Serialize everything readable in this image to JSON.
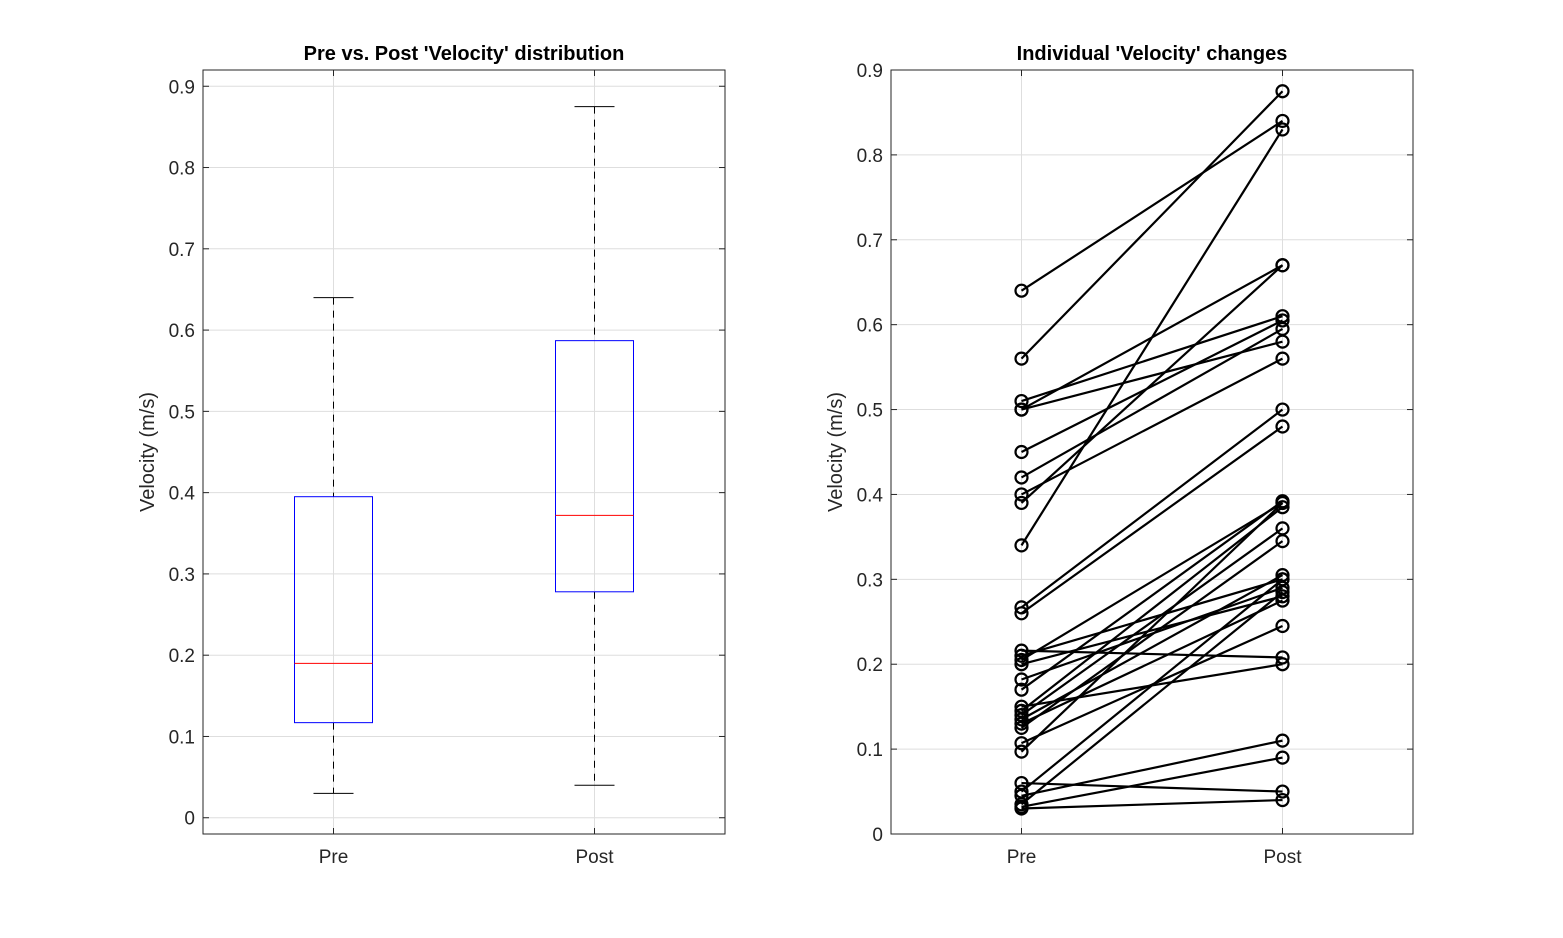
{
  "chart_data": [
    {
      "type": "box",
      "title": "Pre vs. Post 'Velocity' distribution",
      "xlabel": "",
      "ylabel": "Velocity (m/s)",
      "categories": [
        "Pre",
        "Post"
      ],
      "ylim": [
        -0.02,
        0.92
      ],
      "yticks": [
        0,
        0.1,
        0.2,
        0.3,
        0.4,
        0.5,
        0.6,
        0.7,
        0.8,
        0.9
      ],
      "ytick_labels": [
        "0",
        "0.1",
        "0.2",
        "0.3",
        "0.4",
        "0.5",
        "0.6",
        "0.7",
        "0.8",
        "0.9"
      ],
      "grid": true,
      "boxes": [
        {
          "name": "Pre",
          "whisker_low": 0.03,
          "q1": 0.117,
          "median": 0.19,
          "q3": 0.395,
          "whisker_high": 0.64
        },
        {
          "name": "Post",
          "whisker_low": 0.04,
          "q1": 0.278,
          "median": 0.372,
          "q3": 0.587,
          "whisker_high": 0.875
        }
      ],
      "colors": {
        "box": "#0000ff",
        "median": "#ff0000",
        "whisker": "#000000"
      }
    },
    {
      "type": "line",
      "title": "Individual 'Velocity' changes",
      "xlabel": "",
      "ylabel": "Velocity (m/s)",
      "categories": [
        "Pre",
        "Post"
      ],
      "ylim": [
        0,
        0.9
      ],
      "yticks": [
        0,
        0.1,
        0.2,
        0.3,
        0.4,
        0.5,
        0.6,
        0.7,
        0.8,
        0.9
      ],
      "ytick_labels": [
        "0",
        "0.1",
        "0.2",
        "0.3",
        "0.4",
        "0.5",
        "0.6",
        "0.7",
        "0.8",
        "0.9"
      ],
      "grid": true,
      "marker": "circle",
      "line_color": "#000000",
      "pairs": [
        {
          "pre": 0.64,
          "post": 0.84
        },
        {
          "pre": 0.56,
          "post": 0.875
        },
        {
          "pre": 0.51,
          "post": 0.61
        },
        {
          "pre": 0.5,
          "post": 0.67
        },
        {
          "pre": 0.5,
          "post": 0.58
        },
        {
          "pre": 0.45,
          "post": 0.605
        },
        {
          "pre": 0.42,
          "post": 0.595
        },
        {
          "pre": 0.4,
          "post": 0.56
        },
        {
          "pre": 0.39,
          "post": 0.67
        },
        {
          "pre": 0.34,
          "post": 0.83
        },
        {
          "pre": 0.267,
          "post": 0.5
        },
        {
          "pre": 0.26,
          "post": 0.48
        },
        {
          "pre": 0.216,
          "post": 0.208
        },
        {
          "pre": 0.21,
          "post": 0.3
        },
        {
          "pre": 0.205,
          "post": 0.39
        },
        {
          "pre": 0.2,
          "post": 0.28
        },
        {
          "pre": 0.182,
          "post": 0.29
        },
        {
          "pre": 0.17,
          "post": 0.392
        },
        {
          "pre": 0.15,
          "post": 0.2
        },
        {
          "pre": 0.145,
          "post": 0.385
        },
        {
          "pre": 0.14,
          "post": 0.36
        },
        {
          "pre": 0.135,
          "post": 0.305
        },
        {
          "pre": 0.13,
          "post": 0.275
        },
        {
          "pre": 0.125,
          "post": 0.345
        },
        {
          "pre": 0.107,
          "post": 0.245
        },
        {
          "pre": 0.097,
          "post": 0.39
        },
        {
          "pre": 0.06,
          "post": 0.05
        },
        {
          "pre": 0.05,
          "post": 0.3
        },
        {
          "pre": 0.045,
          "post": 0.11
        },
        {
          "pre": 0.035,
          "post": 0.285
        },
        {
          "pre": 0.032,
          "post": 0.09
        },
        {
          "pre": 0.03,
          "post": 0.04
        }
      ]
    }
  ]
}
